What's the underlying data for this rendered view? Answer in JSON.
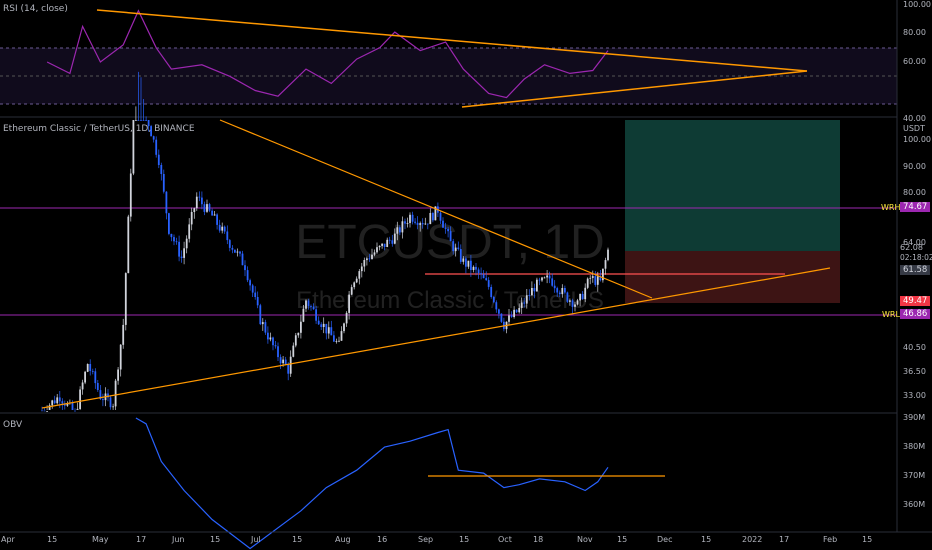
{
  "rsi_panel": {
    "label": "RSI (14, close)",
    "axis_ticks": [
      "100.00",
      "80.00",
      "60.00",
      "40.00"
    ]
  },
  "main_panel": {
    "label": "Ethereum Classic / TetherUS, 1D, BINANCE",
    "watermark_symbol": "ETCUSDT, 1D",
    "watermark_name": "Ethereum Classic / TetherUS",
    "currency_label": "USDT",
    "axis_ticks": [
      "100.00",
      "90.00",
      "80.00",
      "64.00",
      "40.50",
      "36.50",
      "33.00"
    ],
    "wrh_label": "WRH",
    "wrh_value": "74.67",
    "wrl_label": "WRL",
    "wrl_value": "46.86",
    "last_price": "62.08",
    "countdown": "02:18:02",
    "entry_value": "61.58",
    "stop_value": "49.47"
  },
  "obv_panel": {
    "label": "OBV",
    "axis_ticks": [
      "390M",
      "380M",
      "370M",
      "360M"
    ]
  },
  "x_axis": {
    "ticks": [
      "Apr",
      "15",
      "May",
      "17",
      "Jun",
      "15",
      "Jul",
      "15",
      "Aug",
      "16",
      "Sep",
      "15",
      "Oct",
      "18",
      "Nov",
      "15",
      "Dec",
      "15",
      "2022",
      "17",
      "Feb",
      "15"
    ]
  },
  "colors": {
    "background": "#000000",
    "candle_up": "#d1d4dc",
    "candle_down": "#2962ff",
    "rsi_line": "#9c27b0",
    "obv_line": "#2962ff",
    "trendline": "#ff9800",
    "level_line": "#9c27b0",
    "profit_zone": "#0e3b34",
    "loss_zone": "#3d1414"
  },
  "chart_data": {
    "type": "candlestick",
    "symbol": "ETCUSDT",
    "timeframe": "1D",
    "y_axis_visible": [
      30,
      104
    ],
    "levels": [
      {
        "name": "WRH",
        "value": 74.67
      },
      {
        "name": "WRL",
        "value": 46.86
      }
    ],
    "position": {
      "entry": 61.58,
      "stop": 49.47,
      "target_top": 104
    },
    "price_path": [
      [
        "2021-03-30",
        31
      ],
      [
        "2021-04-06",
        33
      ],
      [
        "2021-04-12",
        30.5
      ],
      [
        "2021-04-17",
        38
      ],
      [
        "2021-04-22",
        33
      ],
      [
        "2021-04-27",
        32
      ],
      [
        "2021-05-01",
        45
      ],
      [
        "2021-05-04",
        88
      ],
      [
        "2021-05-06",
        150
      ],
      [
        "2021-05-10",
        112
      ],
      [
        "2021-05-15",
        92
      ],
      [
        "2021-05-19",
        68
      ],
      [
        "2021-05-24",
        60
      ],
      [
        "2021-05-30",
        78
      ],
      [
        "2021-06-05",
        72
      ],
      [
        "2021-06-12",
        64
      ],
      [
        "2021-06-18",
        58
      ],
      [
        "2021-06-24",
        46
      ],
      [
        "2021-06-30",
        40
      ],
      [
        "2021-07-05",
        37
      ],
      [
        "2021-07-12",
        50
      ],
      [
        "2021-07-20",
        44
      ],
      [
        "2021-07-25",
        41
      ],
      [
        "2021-07-30",
        54
      ],
      [
        "2021-08-05",
        60
      ],
      [
        "2021-08-11",
        63
      ],
      [
        "2021-08-16",
        66
      ],
      [
        "2021-08-22",
        72
      ],
      [
        "2021-08-28",
        70
      ],
      [
        "2021-09-02",
        74
      ],
      [
        "2021-09-07",
        64
      ],
      [
        "2021-09-12",
        59
      ],
      [
        "2021-09-18",
        56
      ],
      [
        "2021-09-22",
        53
      ],
      [
        "2021-09-28",
        45
      ],
      [
        "2021-10-04",
        48
      ],
      [
        "2021-10-10",
        53
      ],
      [
        "2021-10-16",
        55
      ],
      [
        "2021-10-22",
        51
      ],
      [
        "2021-10-27",
        49
      ],
      [
        "2021-11-01",
        55
      ],
      [
        "2021-11-05",
        54
      ],
      [
        "2021-11-08",
        62
      ]
    ],
    "rsi_path": [
      [
        "2021-04-01",
        60
      ],
      [
        "2021-04-10",
        52
      ],
      [
        "2021-04-15",
        85
      ],
      [
        "2021-04-22",
        60
      ],
      [
        "2021-05-01",
        72
      ],
      [
        "2021-05-07",
        96
      ],
      [
        "2021-05-14",
        70
      ],
      [
        "2021-05-20",
        55
      ],
      [
        "2021-06-01",
        58
      ],
      [
        "2021-06-12",
        50
      ],
      [
        "2021-06-22",
        40
      ],
      [
        "2021-07-01",
        36
      ],
      [
        "2021-07-12",
        55
      ],
      [
        "2021-07-22",
        45
      ],
      [
        "2021-08-01",
        62
      ],
      [
        "2021-08-10",
        70
      ],
      [
        "2021-08-16",
        81
      ],
      [
        "2021-08-26",
        68
      ],
      [
        "2021-09-05",
        74
      ],
      [
        "2021-09-12",
        55
      ],
      [
        "2021-09-22",
        38
      ],
      [
        "2021-09-29",
        35
      ],
      [
        "2021-10-06",
        48
      ],
      [
        "2021-10-14",
        58
      ],
      [
        "2021-10-24",
        52
      ],
      [
        "2021-11-02",
        54
      ],
      [
        "2021-11-08",
        68
      ]
    ],
    "obv_path": [
      [
        "2021-05-06",
        390
      ],
      [
        "2021-05-10",
        388
      ],
      [
        "2021-05-16",
        375
      ],
      [
        "2021-05-25",
        365
      ],
      [
        "2021-06-05",
        355
      ],
      [
        "2021-06-20",
        345
      ],
      [
        "2021-07-10",
        358
      ],
      [
        "2021-07-20",
        366
      ],
      [
        "2021-08-01",
        372
      ],
      [
        "2021-08-12",
        380
      ],
      [
        "2021-08-22",
        382
      ],
      [
        "2021-09-02",
        385
      ],
      [
        "2021-09-06",
        386
      ],
      [
        "2021-09-10",
        372
      ],
      [
        "2021-09-20",
        371
      ],
      [
        "2021-09-28",
        366
      ],
      [
        "2021-10-04",
        367
      ],
      [
        "2021-10-12",
        369
      ],
      [
        "2021-10-22",
        368
      ],
      [
        "2021-10-30",
        365
      ],
      [
        "2021-11-04",
        368
      ],
      [
        "2021-11-08",
        373
      ]
    ]
  }
}
